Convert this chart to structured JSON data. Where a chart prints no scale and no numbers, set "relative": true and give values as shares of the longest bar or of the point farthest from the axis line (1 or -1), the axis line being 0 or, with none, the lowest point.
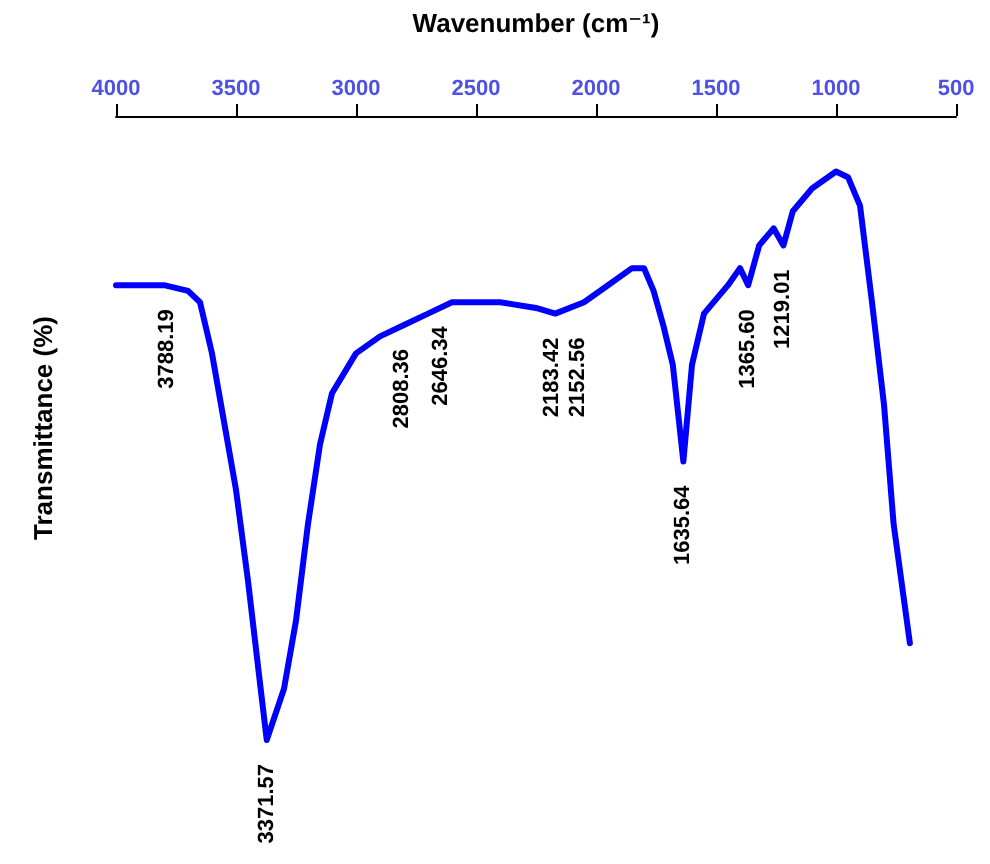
{
  "chart_data": {
    "type": "line",
    "xlabel": "Wavenumber (cm⁻¹)",
    "ylabel": "Transmittance (%)",
    "relative": true,
    "xlim": [
      4000,
      500
    ],
    "xticks": [
      4000,
      3500,
      3000,
      2500,
      2000,
      1500,
      1000,
      500
    ],
    "grid": false,
    "marker": "none",
    "line_style": "solid",
    "series": [
      {
        "color": "#0000ff",
        "x": [
          4000,
          3800,
          3700,
          3650,
          3600,
          3550,
          3500,
          3450,
          3400,
          3372,
          3300,
          3250,
          3200,
          3150,
          3100,
          3000,
          2900,
          2800,
          2700,
          2600,
          2400,
          2250,
          2170,
          2050,
          1950,
          1850,
          1800,
          1760,
          1720,
          1680,
          1636,
          1600,
          1550,
          1450,
          1400,
          1366,
          1320,
          1260,
          1219,
          1180,
          1100,
          1000,
          950,
          900,
          850,
          800,
          760,
          692
        ],
        "values": [
          0.8,
          0.8,
          0.79,
          0.77,
          0.68,
          0.56,
          0.44,
          0.28,
          0.1,
          0,
          0.09,
          0.21,
          0.38,
          0.52,
          0.61,
          0.68,
          0.71,
          0.73,
          0.75,
          0.77,
          0.77,
          0.76,
          0.75,
          0.77,
          0.8,
          0.83,
          0.83,
          0.79,
          0.73,
          0.66,
          0.49,
          0.66,
          0.75,
          0.8,
          0.83,
          0.8,
          0.87,
          0.9,
          0.87,
          0.93,
          0.97,
          1,
          0.99,
          0.94,
          0.77,
          0.59,
          0.38,
          0.17
        ]
      }
    ],
    "annotations": [
      {
        "text": "3788.19",
        "x": 3788.19,
        "y": 0.8
      },
      {
        "text": "3371.57",
        "x": 3371.57,
        "y": 0
      },
      {
        "text": "2808.36",
        "x": 2808.36,
        "y": 0.73
      },
      {
        "text": "2646.34",
        "x": 2646.34,
        "y": 0.77
      },
      {
        "text": "2183.42",
        "x": 2183.42,
        "y": 0.75
      },
      {
        "text": "2152.56",
        "x": 2152.56,
        "y": 0.75
      },
      {
        "text": "1635.64",
        "x": 1635.64,
        "y": 0.49
      },
      {
        "text": "1365.60",
        "x": 1365.6,
        "y": 0.8
      },
      {
        "text": "1219.01",
        "x": 1219.01,
        "y": 0.87
      }
    ]
  }
}
